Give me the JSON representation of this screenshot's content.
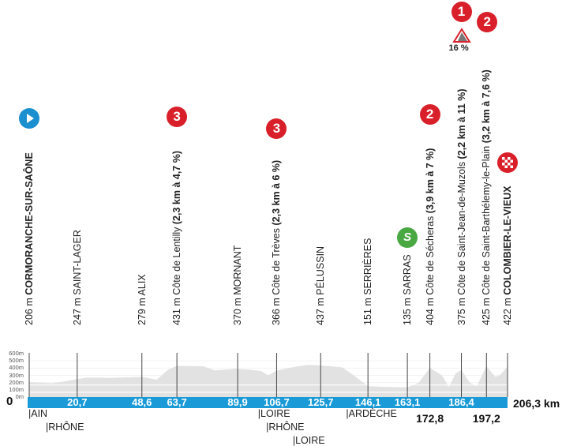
{
  "chart_data": {
    "type": "area",
    "xlabel": "",
    "ylabel": "",
    "x_total_label": "206,3 km",
    "start_label": "0",
    "ylim": [
      0,
      600
    ],
    "y_ticks": [
      "600m",
      "500m",
      "400m",
      "300m",
      "200m",
      "100m",
      "0m"
    ],
    "bar_color": "#1a9ad6",
    "profile_color": "#e2e2e2",
    "waypoints": [
      {
        "km": 0,
        "km_label": "",
        "alt": 206,
        "alt_label": "206 m",
        "name": "CORMORANCHE-SUR-SAÔNE",
        "detail": "",
        "bold_name": true,
        "icon": "start"
      },
      {
        "km": 20.7,
        "km_label": "20,7",
        "alt": 247,
        "alt_label": "247 m",
        "name": "SAINT-LAGER",
        "detail": "",
        "bold_name": false
      },
      {
        "km": 48.6,
        "km_label": "48,6",
        "alt": 279,
        "alt_label": "279 m",
        "name": "ALIX",
        "detail": "",
        "bold_name": false
      },
      {
        "km": 63.7,
        "km_label": "63,7",
        "alt": 431,
        "alt_label": "431 m",
        "name": "Côte de Lentilly",
        "detail": "(2,3 km à 4,7 %)",
        "bold_name": false,
        "icon": "cat3",
        "badge": "3"
      },
      {
        "km": 89.9,
        "km_label": "89,9",
        "alt": 370,
        "alt_label": "370 m",
        "name": "MORNANT",
        "detail": "",
        "bold_name": false
      },
      {
        "km": 106.7,
        "km_label": "106,7",
        "alt": 366,
        "alt_label": "366 m",
        "name": "Côte de Trèves",
        "detail": "(2,3 km à 6 %)",
        "bold_name": false,
        "icon": "cat3",
        "badge": "3"
      },
      {
        "km": 125.7,
        "km_label": "125,7",
        "alt": 437,
        "alt_label": "437 m",
        "name": "PÉLUSSIN",
        "detail": "",
        "bold_name": false
      },
      {
        "km": 146.1,
        "km_label": "146,1",
        "alt": 151,
        "alt_label": "151 m",
        "name": "SERRIÈRES",
        "detail": "",
        "bold_name": false
      },
      {
        "km": 163.1,
        "km_label": "163,1",
        "alt": 135,
        "alt_label": "135 m",
        "name": "SARRAS",
        "detail": "",
        "bold_name": false,
        "icon": "sprint",
        "badge": "S"
      },
      {
        "km": 172.8,
        "km_label": "172,8",
        "alt": 404,
        "alt_label": "404 m",
        "name": "Côte de Sécheras",
        "detail": "(3,9 km à 7 %)",
        "bold_name": false,
        "icon": "cat2",
        "badge": "2",
        "below": true
      },
      {
        "km": 186.4,
        "km_label": "186,4",
        "alt": 375,
        "alt_label": "375 m",
        "name": "Côte de Saint-Jean-de-Muzols",
        "detail": "(2,2 km à 11 %)",
        "bold_name": false,
        "icon": "cat1",
        "badge": "1",
        "max_gradient": "16 %"
      },
      {
        "km": 197.2,
        "km_label": "197,2",
        "alt": 425,
        "alt_label": "425 m",
        "name": "Côte de Saint-Barthélemy-le-Plain",
        "detail": "(3,2 km à 7,6 %)",
        "bold_name": false,
        "icon": "cat2",
        "badge": "2",
        "below": true
      },
      {
        "km": 206.3,
        "km_label": "",
        "alt": 422,
        "alt_label": "422 m",
        "name": "COLOMBIER-LE-VIEUX",
        "detail": "",
        "bold_name": true,
        "icon": "finish"
      }
    ],
    "profile": [
      [
        0,
        206
      ],
      [
        10,
        190
      ],
      [
        20.7,
        247
      ],
      [
        25,
        270
      ],
      [
        35,
        265
      ],
      [
        45,
        275
      ],
      [
        48.6,
        279
      ],
      [
        55,
        240
      ],
      [
        60,
        380
      ],
      [
        63.7,
        431
      ],
      [
        75,
        425
      ],
      [
        80,
        370
      ],
      [
        89,
        390
      ],
      [
        95,
        380
      ],
      [
        100,
        360
      ],
      [
        103,
        300
      ],
      [
        106.7,
        366
      ],
      [
        115,
        420
      ],
      [
        120,
        445
      ],
      [
        125.7,
        437
      ],
      [
        135,
        410
      ],
      [
        140,
        300
      ],
      [
        146.1,
        151
      ],
      [
        155,
        140
      ],
      [
        163.1,
        135
      ],
      [
        168,
        200
      ],
      [
        172.8,
        404
      ],
      [
        178,
        300
      ],
      [
        181,
        140
      ],
      [
        184,
        330
      ],
      [
        186.4,
        375
      ],
      [
        190,
        200
      ],
      [
        193,
        150
      ],
      [
        197.2,
        425
      ],
      [
        201,
        280
      ],
      [
        203,
        300
      ],
      [
        206.3,
        422
      ]
    ],
    "departments": [
      {
        "km": 0,
        "label": "|AIN",
        "row": 0
      },
      {
        "km": 7.5,
        "label": "|RHÔNE",
        "row": 1
      },
      {
        "km": 99,
        "label": "|LOIRE",
        "row": 0
      },
      {
        "km": 102.5,
        "label": "|RHÔNE",
        "row": 1
      },
      {
        "km": 114,
        "label": "|LOIRE",
        "row": 2
      },
      {
        "km": 137,
        "label": "|ARDÈCHE",
        "row": 0
      }
    ]
  }
}
